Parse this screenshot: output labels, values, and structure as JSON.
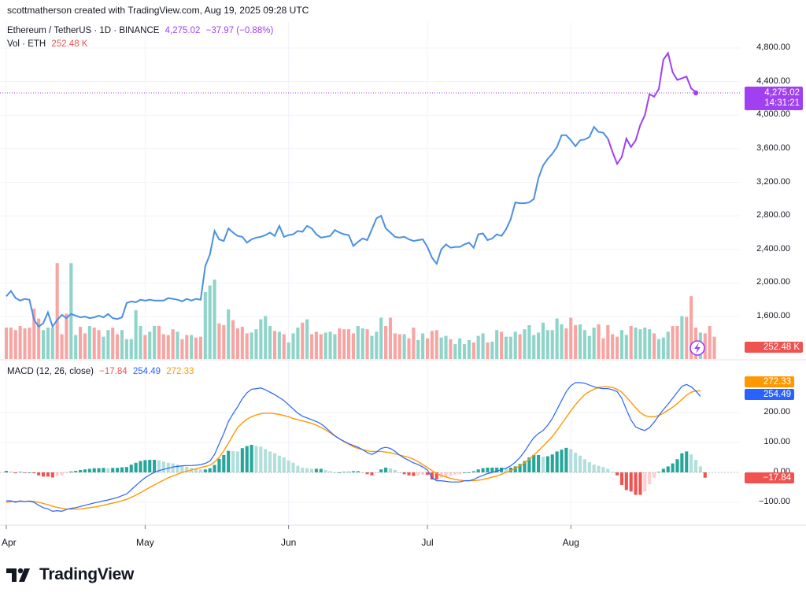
{
  "header": {
    "credit": "scottmatherson created with TradingView.com, Aug 19, 2025 09:28 UTC",
    "symbol": "Ethereum / TetherUS · 1D · BINANCE",
    "last_price": "4,275.02",
    "change": "−37.97 (−0.88%)",
    "vol_label": "Vol · ETH",
    "vol_value": "252.48 K"
  },
  "price_badge": {
    "price": "4,275.02",
    "countdown": "14:31:21"
  },
  "vol_badge": "252.48 K",
  "macd_header": {
    "label": "MACD (12, 26, close)",
    "histogram": "−17.84",
    "macd": "254.49",
    "signal": "272.33"
  },
  "macd_badges": {
    "signal": "272.33",
    "macd": "254.49",
    "histogram": "−17.84"
  },
  "footer": {
    "brand": "TradingView"
  },
  "colors": {
    "price_old": "#4a90e2",
    "price_new": "#a040f0",
    "up": "#26a69a",
    "down": "#ef5350",
    "macd": "#2962ff",
    "signal": "#ff9800",
    "grid": "#f0f3fa"
  },
  "icons": {
    "alert": "lightning-bolt-icon",
    "logo": "tv-logo-icon"
  },
  "chart_data": [
    {
      "type": "line",
      "title": "Ethereum / TetherUS · 1D · BINANCE",
      "ylim": [
        1200,
        5000
      ],
      "yticks": [
        "1,600.00",
        "2,000.00",
        "2,400.00",
        "2,800.00",
        "3,200.00",
        "3,600.00",
        "4,000.00",
        "4,400.00",
        "4,800.00"
      ],
      "xticks": [
        "Apr",
        "May",
        "Jun",
        "Jul",
        "Aug"
      ],
      "start_date": "2025-04-01",
      "grid": true,
      "series": [
        {
          "values": [
            1840,
            1905,
            1820,
            1790,
            1810,
            1800,
            1560,
            1480,
            1520,
            1650,
            1480,
            1560,
            1620,
            1580,
            1630,
            1610,
            1590,
            1600,
            1580,
            1590,
            1610,
            1590,
            1630,
            1580,
            1570,
            1590,
            1760,
            1780,
            1770,
            1800,
            1790,
            1800,
            1790,
            1790,
            1790,
            1820,
            1810,
            1800,
            1780,
            1810,
            1790,
            1810,
            1800,
            2200,
            2340,
            2620,
            2520,
            2500,
            2650,
            2600,
            2560,
            2550,
            2480,
            2520,
            2540,
            2550,
            2570,
            2600,
            2560,
            2680,
            2550,
            2570,
            2580,
            2620,
            2610,
            2680,
            2650,
            2580,
            2540,
            2550,
            2560,
            2630,
            2600,
            2580,
            2570,
            2440,
            2490,
            2530,
            2510,
            2640,
            2770,
            2800,
            2650,
            2600,
            2550,
            2540,
            2550,
            2520,
            2500,
            2510,
            2520,
            2430,
            2300,
            2230,
            2400,
            2460,
            2420,
            2430,
            2430,
            2460,
            2480,
            2420,
            2580,
            2590,
            2510,
            2530,
            2580,
            2560,
            2640,
            2760,
            2960,
            2950,
            2950,
            2960,
            3000,
            3250,
            3400,
            3480,
            3540,
            3620,
            3760,
            3760,
            3700,
            3630,
            3700,
            3710,
            3740,
            3860,
            3800,
            3790,
            3720,
            3560,
            3420,
            3500,
            3720,
            3620,
            3700,
            3880,
            4000,
            4250,
            4220,
            4310,
            4660,
            4740,
            4510,
            4420,
            4440,
            4460,
            4320,
            4275.02
          ]
        }
      ]
    },
    {
      "type": "bar",
      "title": "Vol · ETH",
      "series": [
        {
          "values": [
            380,
            380,
            350,
            400,
            370,
            380,
            610,
            490,
            350,
            380,
            380,
            1160,
            300,
            550,
            1160,
            290,
            390,
            310,
            400,
            380,
            350,
            270,
            350,
            380,
            300,
            350,
            240,
            240,
            590,
            400,
            290,
            330,
            400,
            400,
            300,
            290,
            360,
            330,
            240,
            290,
            290,
            260,
            270,
            810,
            890,
            960,
            430,
            410,
            600,
            470,
            370,
            390,
            310,
            320,
            360,
            480,
            520,
            400,
            340,
            330,
            300,
            200,
            310,
            380,
            440,
            480,
            300,
            330,
            300,
            320,
            330,
            300,
            370,
            360,
            360,
            310,
            400,
            370,
            360,
            280,
            330,
            500,
            400,
            500,
            310,
            300,
            300,
            250,
            380,
            230,
            310,
            250,
            340,
            350,
            260,
            280,
            240,
            180,
            250,
            180,
            230,
            200,
            280,
            310,
            200,
            210,
            350,
            330,
            270,
            270,
            330,
            300,
            360,
            410,
            290,
            320,
            440,
            350,
            350,
            490,
            420,
            370,
            500,
            410,
            420,
            350,
            280,
            380,
            420,
            250,
            410,
            300,
            270,
            350,
            290,
            400,
            380,
            360,
            380,
            360,
            310,
            240,
            260,
            330,
            400,
            400,
            520,
            510,
            760,
            380,
            320,
            310,
            400,
            270
          ],
          "up": [
            0,
            0,
            0,
            0,
            0,
            0,
            0,
            0,
            1,
            1,
            1,
            0,
            0,
            0,
            1,
            1,
            0,
            0,
            1,
            0,
            0,
            1,
            1,
            0,
            0,
            1,
            1,
            1,
            1,
            1,
            0,
            1,
            1,
            0,
            0,
            0,
            0,
            1,
            0,
            0,
            1,
            0,
            0,
            1,
            1,
            1,
            0,
            0,
            1,
            0,
            0,
            0,
            0,
            1,
            1,
            1,
            1,
            1,
            0,
            1,
            0,
            1,
            1,
            1,
            0,
            1,
            0,
            0,
            0,
            1,
            1,
            1,
            0,
            0,
            0,
            0,
            1,
            1,
            0,
            1,
            1,
            1,
            0,
            0,
            0,
            0,
            1,
            0,
            0,
            1,
            1,
            0,
            0,
            0,
            1,
            1,
            0,
            1,
            1,
            1,
            1,
            0,
            1,
            1,
            0,
            1,
            1,
            0,
            1,
            1,
            1,
            0,
            1,
            1,
            1,
            1,
            1,
            1,
            1,
            1,
            1,
            0,
            0,
            0,
            1,
            1,
            1,
            1,
            0,
            0,
            0,
            0,
            0,
            1,
            1,
            0,
            1,
            1,
            1,
            1,
            0,
            1,
            1,
            1,
            0,
            0,
            1,
            0,
            0,
            0,
            1,
            0,
            0,
            0
          ]
        }
      ]
    },
    {
      "type": "line",
      "title": "MACD (12, 26, close)",
      "ylim": [
        -150,
        320
      ],
      "yticks": [
        "−100.00",
        "0.00",
        "100.00",
        "200.00"
      ],
      "series": [
        {
          "name": "MACD",
          "values": [
            -95,
            -95,
            -100,
            -95,
            -98,
            -96,
            -100,
            -110,
            -118,
            -122,
            -130,
            -128,
            -130,
            -124,
            -120,
            -118,
            -114,
            -110,
            -106,
            -102,
            -99,
            -95,
            -92,
            -88,
            -84,
            -78,
            -72,
            -58,
            -44,
            -30,
            -18,
            -8,
            0,
            6,
            10,
            14,
            18,
            20,
            22,
            23,
            23,
            24,
            26,
            30,
            38,
            60,
            95,
            130,
            170,
            196,
            220,
            246,
            266,
            278,
            280,
            282,
            276,
            268,
            260,
            250,
            240,
            226,
            212,
            198,
            188,
            182,
            176,
            170,
            162,
            150,
            136,
            122,
            112,
            104,
            96,
            90,
            84,
            76,
            66,
            60,
            68,
            80,
            84,
            80,
            70,
            58,
            48,
            40,
            32,
            26,
            18,
            8,
            -18,
            -28,
            -28,
            -30,
            -32,
            -32,
            -32,
            -28,
            -28,
            -24,
            -16,
            -10,
            -4,
            0,
            4,
            10,
            14,
            22,
            34,
            50,
            70,
            94,
            116,
            130,
            140,
            158,
            180,
            210,
            240,
            270,
            290,
            300,
            300,
            298,
            292,
            286,
            282,
            280,
            280,
            276,
            270,
            248,
            210,
            175,
            152,
            145,
            140,
            150,
            168,
            190,
            210,
            228,
            248,
            268,
            288,
            294,
            286,
            272,
            254.49
          ]
        },
        {
          "name": "Signal",
          "values": [
            -100,
            -98,
            -97,
            -97,
            -97,
            -96,
            -97,
            -100,
            -104,
            -108,
            -113,
            -117,
            -120,
            -122,
            -123,
            -123,
            -122,
            -120,
            -118,
            -116,
            -113,
            -110,
            -106,
            -103,
            -99,
            -95,
            -90,
            -84,
            -76,
            -68,
            -59,
            -50,
            -42,
            -34,
            -26,
            -18,
            -12,
            -6,
            0,
            4,
            8,
            12,
            16,
            20,
            24,
            35,
            50,
            72,
            98,
            125,
            150,
            165,
            178,
            186,
            192,
            196,
            198,
            198,
            196,
            194,
            190,
            186,
            180,
            176,
            172,
            168,
            164,
            158,
            150,
            142,
            132,
            122,
            112,
            102,
            94,
            86,
            80,
            76,
            72,
            70,
            70,
            70,
            68,
            66,
            62,
            58,
            54,
            50,
            44,
            36,
            26,
            16,
            6,
            -4,
            -10,
            -15,
            -20,
            -24,
            -26,
            -28,
            -28,
            -28,
            -26,
            -24,
            -20,
            -16,
            -12,
            -6,
            0,
            6,
            14,
            22,
            32,
            44,
            58,
            72,
            88,
            104,
            120,
            140,
            162,
            184,
            206,
            226,
            244,
            260,
            270,
            278,
            284,
            286,
            286,
            284,
            278,
            268,
            252,
            234,
            216,
            200,
            190,
            186,
            186,
            190,
            198,
            208,
            218,
            230,
            244,
            258,
            268,
            272,
            272.33
          ]
        },
        {
          "name": "Histogram",
          "values": [
            5,
            3,
            -3,
            2,
            -1,
            0,
            -3,
            -10,
            -14,
            -14,
            -17,
            -11,
            -10,
            -2,
            3,
            5,
            8,
            10,
            12,
            14,
            14,
            15,
            14,
            15,
            15,
            17,
            18,
            26,
            32,
            38,
            41,
            42,
            42,
            40,
            36,
            32,
            30,
            26,
            22,
            19,
            15,
            12,
            10,
            10,
            14,
            25,
            45,
            58,
            72,
            71,
            70,
            81,
            88,
            92,
            88,
            86,
            78,
            70,
            64,
            56,
            50,
            40,
            32,
            22,
            16,
            14,
            12,
            12,
            12,
            8,
            4,
            0,
            0,
            2,
            2,
            4,
            4,
            0,
            -6,
            -10,
            -2,
            10,
            16,
            14,
            8,
            0,
            -6,
            -10,
            -12,
            -10,
            -8,
            -8,
            -24,
            -24,
            -18,
            -15,
            -12,
            -8,
            -6,
            0,
            0,
            4,
            10,
            14,
            16,
            16,
            16,
            16,
            14,
            16,
            20,
            28,
            38,
            50,
            58,
            58,
            52,
            54,
            60,
            70,
            76,
            82,
            78,
            66,
            56,
            44,
            34,
            26,
            22,
            18,
            12,
            2,
            -10,
            -42,
            -59,
            -64,
            -75,
            -75,
            -64,
            -40,
            -18,
            2,
            12,
            20,
            30,
            44,
            64,
            70,
            60,
            42,
            20,
            -17.84
          ]
        }
      ]
    }
  ]
}
